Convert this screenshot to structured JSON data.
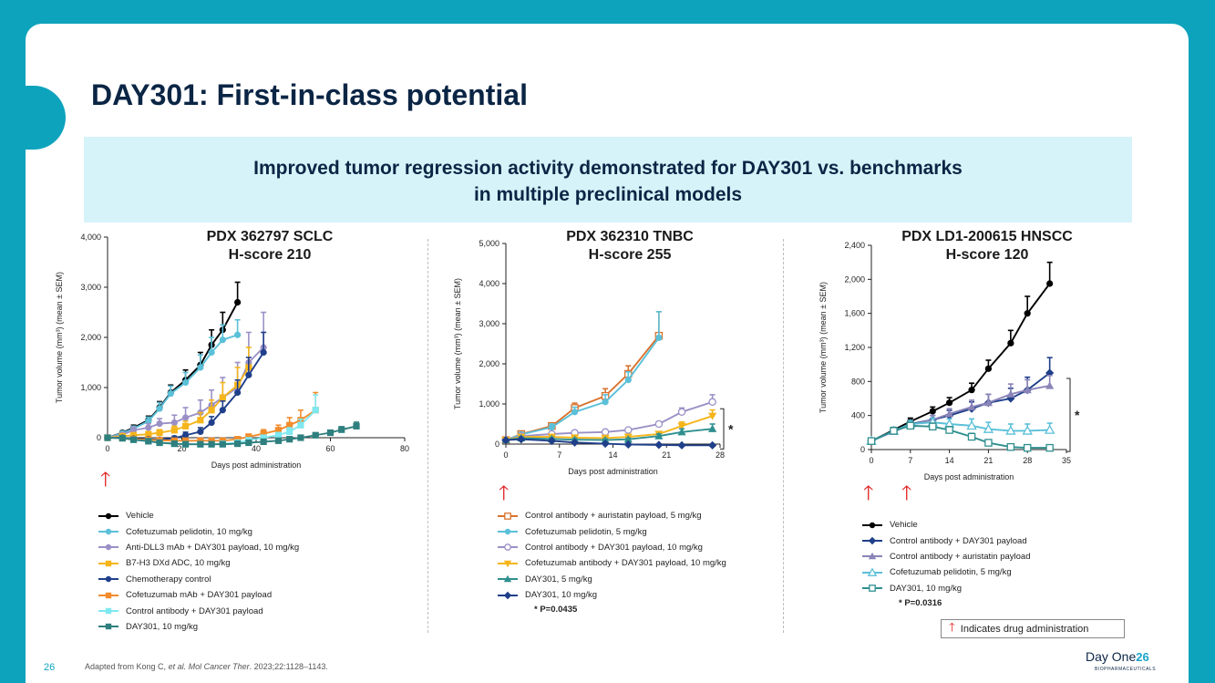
{
  "slide": {
    "title": "DAY301: First-in-class potential",
    "banner_line1": "Improved tumor regression activity demonstrated for DAY301 vs. benchmarks",
    "banner_line2": "in multiple preclinical models",
    "page_number": "26",
    "footnote_prefix": "Adapted from Kong C, ",
    "footnote_journal": "et al. Mol Cancer Ther",
    "footnote_suffix": ". 2023;22:1128–1143.",
    "drug_admin_label": "Indicates drug administration",
    "logo_text": "Day One",
    "logo_number": "26",
    "logo_sub": "BIOPHARMACEUTICALS",
    "accent_color": "#0ea3bd",
    "arrow_color": "#e02020",
    "arrow_icon": "red-up-arrow"
  },
  "chart_data": [
    {
      "type": "line",
      "title_line1": "PDX 362797 SCLC",
      "title_line2": "H-score 210",
      "xlabel": "Days post administration",
      "ylabel": "Tumor volume (mm³) (mean ± SEM)",
      "xlim": [
        0,
        80
      ],
      "ylim": [
        0,
        4000
      ],
      "xticks": [
        0,
        20,
        40,
        60,
        80
      ],
      "yticks": [
        0,
        1000,
        2000,
        3000,
        4000
      ],
      "xtick_labels": [
        "0",
        "20",
        "40",
        "60",
        "80"
      ],
      "ytick_labels": [
        "0",
        "1,000",
        "2,000",
        "3,000",
        "4,000"
      ],
      "drug_administration_days": [
        0
      ],
      "series": [
        {
          "name": "Vehicle",
          "color": "#000000",
          "marker": "circle",
          "x": [
            0,
            4,
            7,
            11,
            14,
            17,
            21,
            25,
            28,
            31,
            35
          ],
          "y": [
            0,
            100,
            200,
            350,
            600,
            900,
            1150,
            1450,
            1850,
            2150,
            2700
          ],
          "err": [
            20,
            30,
            50,
            80,
            120,
            150,
            200,
            250,
            300,
            350,
            400
          ]
        },
        {
          "name": "Cofetuzumab pelidotin, 10 mg/kg",
          "color": "#5bc0d8",
          "marker": "circle",
          "x": [
            0,
            4,
            7,
            11,
            14,
            17,
            21,
            25,
            28,
            31,
            35
          ],
          "y": [
            0,
            90,
            180,
            330,
            580,
            880,
            1100,
            1400,
            1700,
            1950,
            2050
          ],
          "err": [
            20,
            30,
            50,
            80,
            120,
            150,
            200,
            250,
            300,
            300,
            300
          ]
        },
        {
          "name": "Anti-DLL3 mAb + DAY301 payload, 10 mg/kg",
          "color": "#9b90c6",
          "marker": "circle",
          "x": [
            0,
            4,
            7,
            11,
            14,
            18,
            21,
            25,
            28,
            31,
            35,
            38,
            42
          ],
          "y": [
            0,
            60,
            150,
            200,
            280,
            300,
            400,
            500,
            650,
            800,
            1000,
            1500,
            1800
          ],
          "err": [
            20,
            40,
            60,
            80,
            100,
            150,
            200,
            250,
            300,
            400,
            500,
            600,
            700
          ]
        },
        {
          "name": "B7-H3 DXd ADC, 10 mg/kg",
          "color": "#f5b51b",
          "marker": "square",
          "x": [
            0,
            4,
            7,
            11,
            14,
            18,
            21,
            25,
            28,
            31,
            35,
            38
          ],
          "y": [
            0,
            30,
            50,
            70,
            100,
            150,
            230,
            350,
            550,
            800,
            1050,
            1400
          ],
          "err": [
            20,
            30,
            40,
            50,
            60,
            80,
            100,
            150,
            200,
            300,
            350,
            400
          ]
        },
        {
          "name": "Chemotherapy control",
          "color": "#1f3f8a",
          "marker": "circle",
          "x": [
            0,
            4,
            7,
            11,
            14,
            18,
            21,
            25,
            28,
            31,
            35,
            38,
            42
          ],
          "y": [
            0,
            0,
            -20,
            -30,
            -40,
            -10,
            50,
            120,
            300,
            550,
            900,
            1250,
            1700
          ],
          "err": [
            20,
            20,
            20,
            30,
            30,
            40,
            60,
            80,
            120,
            180,
            250,
            350,
            400
          ]
        },
        {
          "name": "Cofetuzumab mAb + DAY301 payload",
          "color": "#f28c2b",
          "marker": "square",
          "x": [
            0,
            4,
            7,
            11,
            14,
            18,
            21,
            25,
            28,
            31,
            35,
            38,
            42,
            46,
            49,
            52,
            56
          ],
          "y": [
            0,
            -10,
            -30,
            -40,
            -50,
            -60,
            -60,
            -60,
            -60,
            -60,
            -30,
            20,
            80,
            150,
            250,
            350,
            550
          ],
          "err": [
            20,
            20,
            20,
            20,
            20,
            20,
            20,
            20,
            20,
            20,
            30,
            50,
            80,
            100,
            150,
            200,
            350
          ]
        },
        {
          "name": "Control antibody + DAY301 payload",
          "color": "#7fe8f0",
          "marker": "square",
          "x": [
            0,
            4,
            7,
            11,
            14,
            18,
            21,
            25,
            28,
            31,
            35,
            38,
            42,
            46,
            49,
            52,
            56
          ],
          "y": [
            0,
            -10,
            -40,
            -70,
            -100,
            -120,
            -130,
            -130,
            -130,
            -120,
            -100,
            -50,
            0,
            50,
            120,
            250,
            550
          ],
          "err": [
            20,
            20,
            20,
            20,
            20,
            20,
            20,
            20,
            20,
            20,
            20,
            30,
            40,
            50,
            80,
            120,
            300
          ]
        },
        {
          "name": "DAY301, 10 mg/kg",
          "color": "#2f7f7f",
          "marker": "square",
          "x": [
            0,
            4,
            7,
            11,
            14,
            18,
            21,
            25,
            28,
            31,
            35,
            38,
            42,
            46,
            49,
            52,
            56,
            60,
            63,
            67
          ],
          "y": [
            0,
            -10,
            -40,
            -70,
            -100,
            -120,
            -130,
            -130,
            -130,
            -130,
            -120,
            -100,
            -80,
            -60,
            -30,
            0,
            50,
            100,
            160,
            230
          ],
          "err": [
            20,
            20,
            20,
            20,
            20,
            20,
            20,
            20,
            20,
            20,
            20,
            20,
            20,
            20,
            20,
            20,
            30,
            40,
            60,
            80
          ]
        }
      ]
    },
    {
      "type": "line",
      "title_line1": "PDX 362310 TNBC",
      "title_line2": "H-score 255",
      "xlabel": "Days post administration",
      "ylabel": "Tumor volume (mm³) (mean ± SEM)",
      "xlim": [
        0,
        28
      ],
      "ylim": [
        0,
        5000
      ],
      "xticks": [
        0,
        7,
        14,
        21,
        28
      ],
      "yticks": [
        0,
        1000,
        2000,
        3000,
        4000,
        5000
      ],
      "xtick_labels": [
        "0",
        "7",
        "14",
        "21",
        "28"
      ],
      "ytick_labels": [
        "0",
        "1,000",
        "2,000",
        "3,000",
        "4,000",
        "5,000"
      ],
      "drug_administration_days": [
        0
      ],
      "significance": "*",
      "p_value_note": "* P=0.0435",
      "series": [
        {
          "name": "Control antibody + auristatin payload, 5 mg/kg",
          "color": "#d9722e",
          "marker": "square-open",
          "x": [
            0,
            2,
            6,
            9,
            13,
            16,
            20
          ],
          "y": [
            100,
            250,
            450,
            900,
            1200,
            1750,
            2700
          ],
          "err": [
            30,
            50,
            80,
            120,
            180,
            200,
            600
          ]
        },
        {
          "name": "Cofetuzumab pelidotin, 5 mg/kg",
          "color": "#5bc0d8",
          "marker": "circle",
          "x": [
            0,
            2,
            6,
            9,
            13,
            16,
            20
          ],
          "y": [
            100,
            240,
            420,
            800,
            1050,
            1600,
            2650
          ],
          "err": [
            30,
            50,
            80,
            120,
            180,
            200,
            650
          ]
        },
        {
          "name": "Control antibody + DAY301 payload, 10 mg/kg",
          "color": "#9b90c6",
          "marker": "circle-open",
          "x": [
            0,
            2,
            6,
            9,
            13,
            16,
            20,
            23,
            27
          ],
          "y": [
            100,
            200,
            250,
            280,
            300,
            350,
            500,
            800,
            1050
          ],
          "err": [
            20,
            30,
            40,
            40,
            40,
            50,
            60,
            100,
            180
          ]
        },
        {
          "name": "Cofetuzumab antibody + DAY301 payload, 10 mg/kg",
          "color": "#f5b51b",
          "marker": "triangle-down",
          "x": [
            0,
            2,
            6,
            9,
            13,
            16,
            20,
            23,
            27
          ],
          "y": [
            100,
            180,
            180,
            160,
            150,
            180,
            250,
            450,
            700
          ],
          "err": [
            20,
            30,
            30,
            30,
            30,
            40,
            60,
            100,
            150
          ]
        },
        {
          "name": "DAY301, 5 mg/kg",
          "color": "#2f8f8f",
          "marker": "triangle",
          "x": [
            0,
            2,
            6,
            9,
            13,
            16,
            20,
            23,
            27
          ],
          "y": [
            100,
            150,
            130,
            110,
            100,
            120,
            200,
            300,
            380
          ],
          "err": [
            20,
            30,
            30,
            30,
            30,
            30,
            50,
            80,
            120
          ]
        },
        {
          "name": "DAY301, 10 mg/kg",
          "color": "#1f3f8a",
          "marker": "diamond",
          "x": [
            0,
            2,
            6,
            9,
            13,
            16,
            20,
            23,
            27
          ],
          "y": [
            100,
            120,
            80,
            40,
            10,
            -10,
            -20,
            -30,
            -30
          ],
          "err": [
            20,
            20,
            20,
            20,
            20,
            20,
            20,
            20,
            20
          ]
        }
      ]
    },
    {
      "type": "line",
      "title_line1": "PDX LD1-200615 HNSCC",
      "title_line2": "H-score 120",
      "xlabel": "Days post administration",
      "ylabel": "Tumor volume (mm³) (mean ± SEM)",
      "xlim": [
        0,
        35
      ],
      "ylim": [
        0,
        2400
      ],
      "xticks": [
        0,
        7,
        14,
        21,
        28,
        35
      ],
      "yticks": [
        0,
        400,
        800,
        1200,
        1600,
        2000,
        2400
      ],
      "xtick_labels": [
        "0",
        "7",
        "14",
        "21",
        "28",
        "35"
      ],
      "ytick_labels": [
        "0",
        "400",
        "800",
        "1,200",
        "1,600",
        "2,000",
        "2,400"
      ],
      "drug_administration_days": [
        0,
        7
      ],
      "significance": "*",
      "p_value_note": "* P=0.0316",
      "series": [
        {
          "name": "Vehicle",
          "color": "#000000",
          "marker": "circle",
          "x": [
            0,
            4,
            7,
            11,
            14,
            18,
            21,
            25,
            28,
            32
          ],
          "y": [
            100,
            230,
            330,
            450,
            550,
            700,
            950,
            1250,
            1600,
            1950
          ],
          "err": [
            20,
            30,
            40,
            50,
            60,
            80,
            100,
            150,
            200,
            250
          ]
        },
        {
          "name": "Control antibody + DAY301 payload",
          "color": "#1f3f8a",
          "marker": "diamond",
          "x": [
            0,
            4,
            7,
            11,
            14,
            18,
            21,
            25,
            28,
            32
          ],
          "y": [
            100,
            220,
            300,
            350,
            400,
            480,
            550,
            600,
            700,
            900
          ],
          "err": [
            20,
            30,
            40,
            50,
            60,
            80,
            100,
            120,
            150,
            180
          ]
        },
        {
          "name": "Control antibody + auristatin payload",
          "color": "#8a84b8",
          "marker": "triangle",
          "x": [
            0,
            4,
            7,
            11,
            14,
            18,
            21,
            25,
            28,
            32
          ],
          "y": [
            100,
            210,
            290,
            350,
            420,
            500,
            550,
            650,
            700,
            750
          ],
          "err": [
            20,
            30,
            40,
            50,
            60,
            80,
            100,
            120,
            120,
            120
          ]
        },
        {
          "name": "Cofetuzumab pelidotin, 5 mg/kg",
          "color": "#5bc0d8",
          "marker": "triangle-open",
          "x": [
            0,
            4,
            7,
            11,
            14,
            18,
            21,
            25,
            28,
            32
          ],
          "y": [
            100,
            220,
            300,
            320,
            300,
            280,
            240,
            220,
            220,
            230
          ],
          "err": [
            20,
            30,
            40,
            50,
            60,
            80,
            80,
            80,
            80,
            80
          ]
        },
        {
          "name": "DAY301, 10 mg/kg",
          "color": "#2f8f8f",
          "marker": "square-open",
          "x": [
            0,
            4,
            7,
            11,
            14,
            18,
            21,
            25,
            28,
            32
          ],
          "y": [
            100,
            220,
            280,
            270,
            230,
            150,
            80,
            30,
            20,
            20
          ],
          "err": [
            20,
            30,
            40,
            40,
            40,
            40,
            30,
            20,
            20,
            20
          ]
        }
      ]
    }
  ]
}
